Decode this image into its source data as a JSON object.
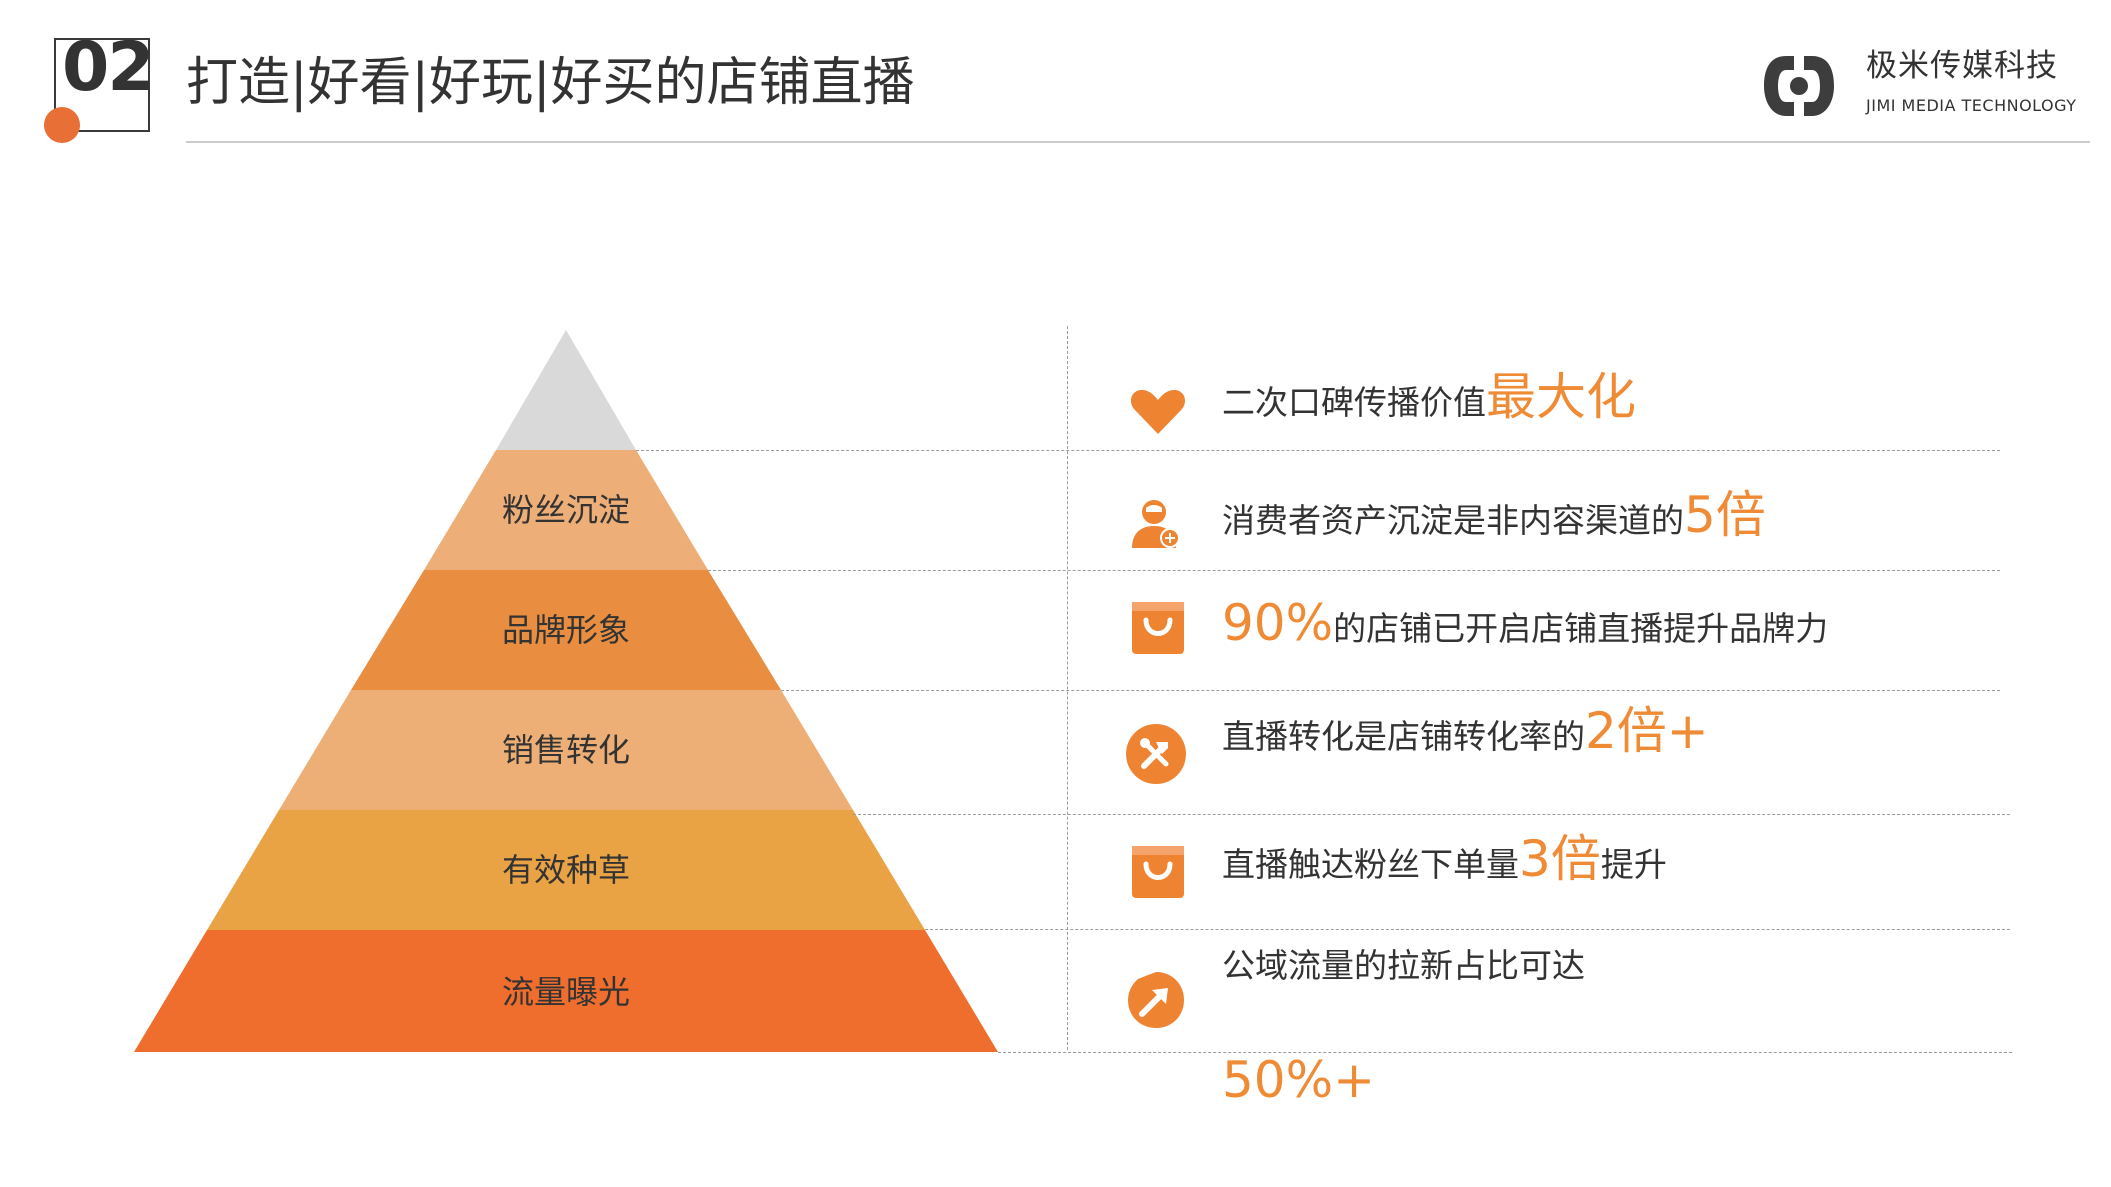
{
  "header": {
    "number": "02",
    "title": "打造|好看|好玩|好买的店铺直播",
    "brand_cn": "极米传媒科技",
    "brand_en": "JIMI MEDIA TECHNOLOGY"
  },
  "pyramid": {
    "tiers": [
      {
        "label": "",
        "color": "#d9d9d9"
      },
      {
        "label": "粉丝沉淀",
        "color": "#eeae77"
      },
      {
        "label": "品牌形象",
        "color": "#e98e40"
      },
      {
        "label": "销售转化",
        "color": "#edaf76"
      },
      {
        "label": "有效种草",
        "color": "#e9a345"
      },
      {
        "label": "流量曝光",
        "color": "#f06e2d"
      }
    ]
  },
  "items": [
    {
      "icon": "heart-icon",
      "pre": "二次口碑传播价值",
      "highlight": "最大化",
      "post": ""
    },
    {
      "icon": "user-add-icon",
      "pre": "消费者资产沉淀是非内容渠道的",
      "highlight": "5倍",
      "post": ""
    },
    {
      "icon": "shopping-bag-icon",
      "pre": "",
      "highlight": "90%",
      "post": "的店铺已开启店铺直播提升品牌力"
    },
    {
      "icon": "tools-icon",
      "pre": "直播转化是店铺转化率的",
      "highlight": "2倍+",
      "post": ""
    },
    {
      "icon": "shopping-bag-icon",
      "pre": "直播触达粉丝下单量",
      "highlight": "3倍",
      "post": "提升"
    },
    {
      "icon": "growth-arrow-icon",
      "pre": "公域流量的拉新占比可达",
      "highlight": "",
      "post": ""
    }
  ],
  "footer_highlight": "50%+",
  "colors": {
    "accent": "#ef8a35",
    "dot": "#e86f35",
    "icon": "#ee8331"
  }
}
